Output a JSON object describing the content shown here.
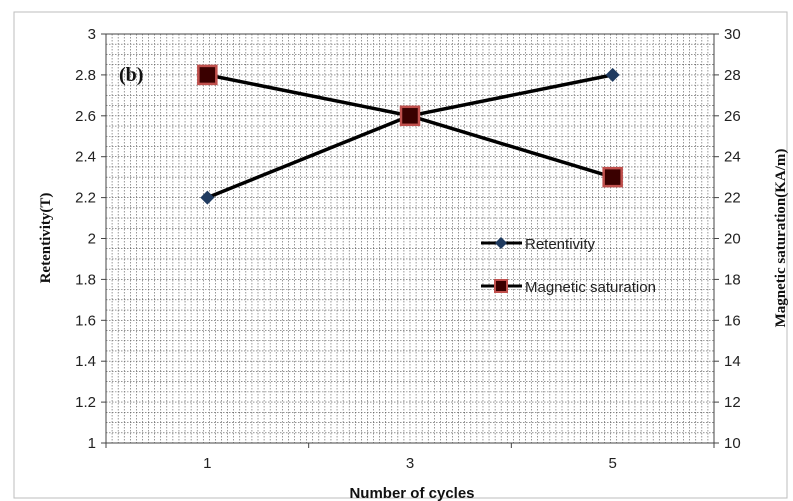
{
  "chart_data": {
    "type": "line",
    "panel_label": "(b)",
    "xlabel": "Number of cycles",
    "categories": [
      "1",
      "3",
      "5"
    ],
    "y_left": {
      "label": "Retentivity(T)",
      "lim": [
        1,
        3
      ],
      "ticks": [
        "1",
        "1.2",
        "1.4",
        "1.6",
        "1.8",
        "2",
        "2.2",
        "2.4",
        "2.6",
        "2.8",
        "3"
      ]
    },
    "y_right": {
      "label": "Magnetic saturation(KA/m)",
      "lim": [
        10,
        30
      ],
      "ticks": [
        "10",
        "12",
        "14",
        "16",
        "18",
        "20",
        "22",
        "24",
        "26",
        "28",
        "30"
      ]
    },
    "series": [
      {
        "name": "Retentivity",
        "axis": "left",
        "marker": "diamond",
        "values": [
          2.2,
          2.6,
          2.8
        ]
      },
      {
        "name": "Magnetic saturation",
        "axis": "right",
        "marker": "square",
        "values": [
          28,
          26,
          23
        ]
      }
    ],
    "grid": true,
    "legend_position": "center-right",
    "colors": {
      "line": "#000000",
      "diamond": "#1f3a5f",
      "square_fill": "#3a0000",
      "square_edge": "#c0504d",
      "grid": "#555555"
    }
  }
}
